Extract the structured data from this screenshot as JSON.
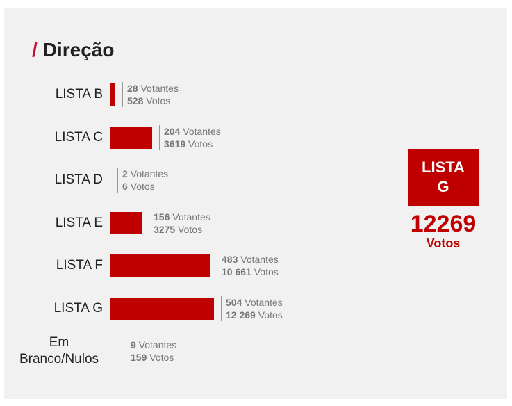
{
  "title": "Direção",
  "winner": {
    "name": "LISTA G",
    "votes_label": "12269",
    "unit": "Votos"
  },
  "chart_data": {
    "type": "bar",
    "orientation": "horizontal",
    "title": "Direção",
    "categories": [
      "LISTA B",
      "LISTA C",
      "LISTA D",
      "LISTA E",
      "LISTA F",
      "LISTA G",
      "Em Branco/Nulos"
    ],
    "series": [
      {
        "name": "Votantes",
        "values": [
          28,
          204,
          2,
          156,
          483,
          504,
          9
        ]
      },
      {
        "name": "Votos",
        "values": [
          528,
          3619,
          6,
          3275,
          10661,
          12269,
          159
        ]
      }
    ],
    "labels": [
      {
        "votantes": "28",
        "votos": "528"
      },
      {
        "votantes": "204",
        "votos": "3619"
      },
      {
        "votantes": "2",
        "votos": "6"
      },
      {
        "votantes": "156",
        "votos": "3275"
      },
      {
        "votantes": "483",
        "votos": "10 661"
      },
      {
        "votantes": "504",
        "votos": "12 269"
      },
      {
        "votantes": "9",
        "votos": "159"
      }
    ],
    "unit_votantes": "Votantes",
    "unit_votos": "Votos",
    "bar_color": "#c00000"
  }
}
